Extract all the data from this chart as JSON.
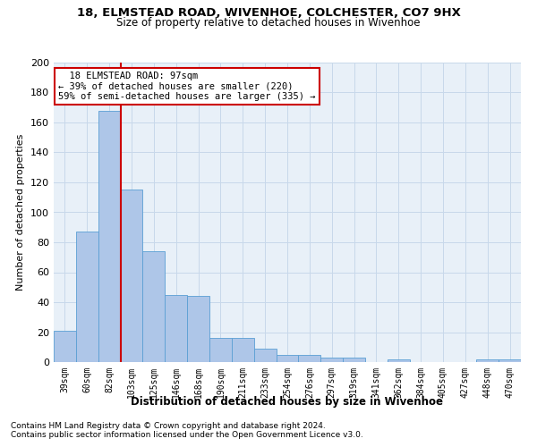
{
  "title1": "18, ELMSTEAD ROAD, WIVENHOE, COLCHESTER, CO7 9HX",
  "title2": "Size of property relative to detached houses in Wivenhoe",
  "xlabel": "Distribution of detached houses by size in Wivenhoe",
  "ylabel": "Number of detached properties",
  "footnote1": "Contains HM Land Registry data © Crown copyright and database right 2024.",
  "footnote2": "Contains public sector information licensed under the Open Government Licence v3.0.",
  "annotation_line1": "  18 ELMSTEAD ROAD: 97sqm  ",
  "annotation_line2": "← 39% of detached houses are smaller (220)",
  "annotation_line3": "59% of semi-detached houses are larger (335) →",
  "categories": [
    "39sqm",
    "60sqm",
    "82sqm",
    "103sqm",
    "125sqm",
    "146sqm",
    "168sqm",
    "190sqm",
    "211sqm",
    "233sqm",
    "254sqm",
    "276sqm",
    "297sqm",
    "319sqm",
    "341sqm",
    "362sqm",
    "384sqm",
    "405sqm",
    "427sqm",
    "448sqm",
    "470sqm"
  ],
  "values": [
    21,
    87,
    168,
    115,
    74,
    45,
    44,
    16,
    16,
    9,
    5,
    5,
    3,
    3,
    0,
    2,
    0,
    0,
    0,
    2,
    2
  ],
  "bar_color": "#aec6e8",
  "bar_edge_color": "#5a9fd4",
  "vline_x_index": 2.5,
  "vline_color": "#cc0000",
  "grid_color": "#c8d8ea",
  "bg_color": "#e8f0f8",
  "annotation_box_color": "#cc0000",
  "ylim": [
    0,
    200
  ],
  "yticks": [
    0,
    20,
    40,
    60,
    80,
    100,
    120,
    140,
    160,
    180,
    200
  ]
}
